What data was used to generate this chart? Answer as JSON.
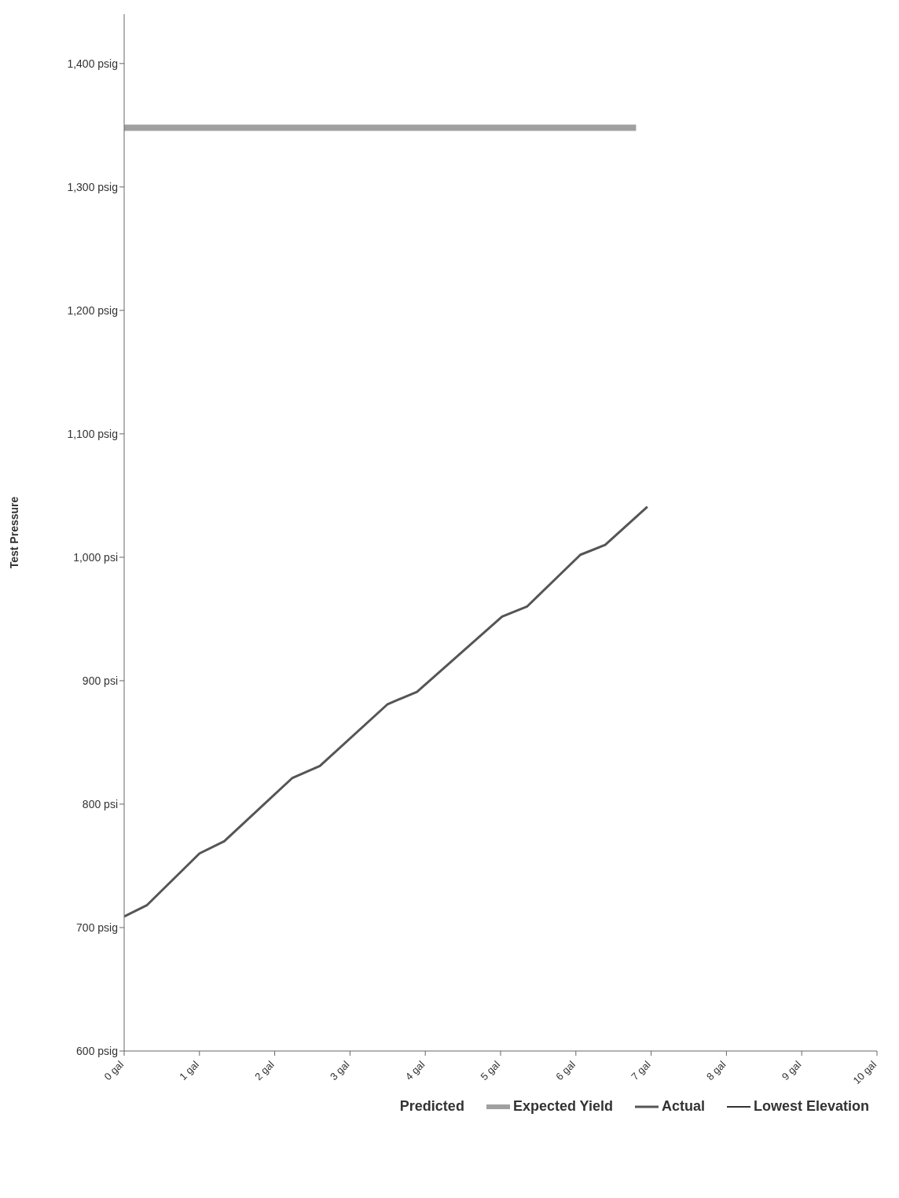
{
  "chart_data": {
    "type": "line",
    "ylabel": "Test Pressure",
    "legend_title": "Predicted",
    "legend": "bottom",
    "marker": "none",
    "line_style": "solid",
    "xlim": [
      0,
      10
    ],
    "xticks": [
      {
        "value": 0,
        "label": "0 gal"
      },
      {
        "value": 1,
        "label": "1 gal"
      },
      {
        "value": 2,
        "label": "2 gal"
      },
      {
        "value": 3,
        "label": "3 gal"
      },
      {
        "value": 4,
        "label": "4 gal"
      },
      {
        "value": 5,
        "label": "5 gal"
      },
      {
        "value": 6,
        "label": "6 gal"
      },
      {
        "value": 7,
        "label": "7 gal"
      },
      {
        "value": 8,
        "label": "8 gal"
      },
      {
        "value": 9,
        "label": "9 gal"
      },
      {
        "value": 10,
        "label": "10 gal"
      }
    ],
    "ylim": [
      600,
      1440
    ],
    "yticks": [
      {
        "value": 600,
        "label": "600 psig"
      },
      {
        "value": 700,
        "label": "700 psig"
      },
      {
        "value": 800,
        "label": "800 psi"
      },
      {
        "value": 900,
        "label": "900 psi"
      },
      {
        "value": 1000,
        "label": "1,000 psi"
      },
      {
        "value": 1100,
        "label": "1,100 psig"
      },
      {
        "value": 1200,
        "label": "1,200 psig"
      },
      {
        "value": 1300,
        "label": "1,300 psig"
      },
      {
        "value": 1400,
        "label": "1,400 psig"
      }
    ],
    "series": [
      {
        "name": "Expected Yield",
        "color": "#a0a0a0",
        "x": [
          0,
          6.8
        ],
        "values": [
          1348,
          1348
        ]
      },
      {
        "name": "Actual",
        "color": "#555555",
        "x": [
          0,
          0.3,
          1.0,
          1.33,
          2.23,
          2.6,
          3.5,
          3.89,
          5.02,
          5.35,
          6.06,
          6.39,
          6.95
        ],
        "values": [
          709,
          718,
          760,
          770,
          821,
          831,
          881,
          891,
          952,
          960,
          1002,
          1010,
          1041
        ]
      },
      {
        "name": "Lowest Elevation",
        "color": "#333333",
        "values": [
          null
        ]
      }
    ]
  }
}
